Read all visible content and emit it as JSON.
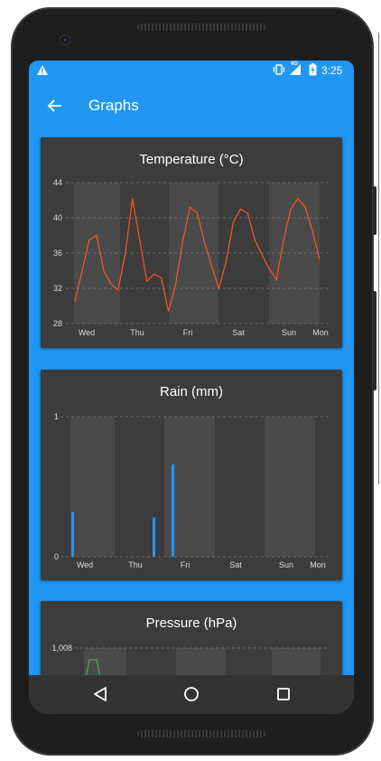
{
  "status_bar": {
    "time": "3:25",
    "network": "4G"
  },
  "app_bar": {
    "title": "Graphs"
  },
  "day_labels": [
    "Wed",
    "Thu",
    "Fri",
    "Sat",
    "Sun",
    "Mon"
  ],
  "icons": {
    "warning": "warning-icon",
    "vibrate": "vibrate-icon",
    "signal": "signal-icon",
    "battery": "battery-icon",
    "back": "arrow-back-icon",
    "nav_back": "triangle-back-icon",
    "nav_home": "circle-home-icon",
    "nav_recents": "square-recents-icon"
  },
  "colors": {
    "accent": "#2196f3",
    "card": "#3c3c3c",
    "temperature_line": "#ff5722",
    "rain_bar": "#2196f3",
    "pressure_line": "#4caf50"
  },
  "chart_data": [
    {
      "type": "line",
      "title": "Temperature (°C)",
      "yticks": [
        28,
        32,
        36,
        40,
        44
      ],
      "ylim": [
        28,
        44
      ],
      "x_labels": [
        "Wed",
        "Thu",
        "Fri",
        "Sat",
        "Sun",
        "Mon"
      ],
      "grid": true,
      "series": [
        {
          "values": [
            30.5,
            34,
            37.5,
            38,
            34,
            32.5,
            31.8,
            36,
            42.2,
            37.5,
            32.8,
            33.6,
            33.2,
            29.4,
            32.5,
            37.5,
            41.2,
            40.5,
            37.2,
            34.5,
            32,
            35,
            39.5,
            41,
            40.5,
            37.5,
            35.8,
            34.2,
            33,
            37.5,
            41,
            42.2,
            41.2,
            38.5,
            35.3
          ]
        }
      ]
    },
    {
      "type": "bar",
      "title": "Rain (mm)",
      "yticks": [
        0,
        1
      ],
      "ylim": [
        0,
        1
      ],
      "x_labels": [
        "Wed",
        "Thu",
        "Fri",
        "Sat",
        "Sun",
        "Mon"
      ],
      "grid": true,
      "series": [
        {
          "values": [
            0.32,
            0.28,
            0.66
          ]
        }
      ]
    },
    {
      "type": "line",
      "title": "Pressure (hPa)",
      "yticks": [
        "1,008"
      ],
      "grid": true
    }
  ]
}
